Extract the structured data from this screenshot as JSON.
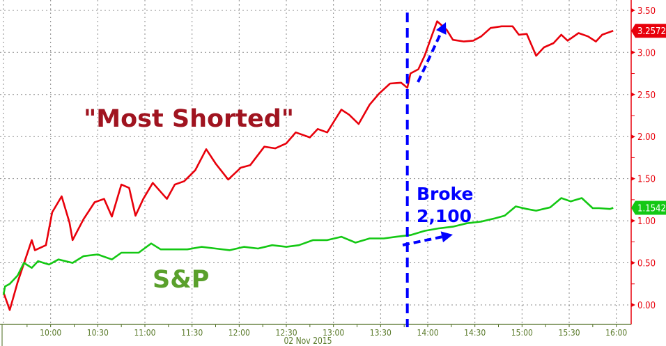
{
  "chart_data": {
    "type": "line",
    "xlabel": "02 Nov 2015",
    "x_ticks": [
      "10:00",
      "10:30",
      "11:00",
      "11:30",
      "12:00",
      "12:30",
      "13:00",
      "13:30",
      "14:00",
      "14:30",
      "15:00",
      "15:30",
      "16:00"
    ],
    "x_range": [
      "09:30",
      "16:00"
    ],
    "y_ticks": [
      "0.00",
      "0.50",
      "1.00",
      "1.50",
      "2.00",
      "2.50",
      "3.00",
      "3.50"
    ],
    "ylim": [
      -0.2,
      3.62
    ],
    "grid": true,
    "y_axis_side": "right",
    "series": [
      {
        "name": "\"Most Shorted\"",
        "color": "#e8000b",
        "last_value": "3.2572",
        "points": [
          [
            "09:30",
            0.15
          ],
          [
            "09:34",
            -0.06
          ],
          [
            "09:39",
            0.27
          ],
          [
            "09:48",
            0.77
          ],
          [
            "09:50",
            0.65
          ],
          [
            "09:57",
            0.71
          ],
          [
            "10:01",
            1.1
          ],
          [
            "10:07",
            1.29
          ],
          [
            "10:12",
            0.98
          ],
          [
            "10:14",
            0.77
          ],
          [
            "10:21",
            1.02
          ],
          [
            "10:28",
            1.22
          ],
          [
            "10:34",
            1.26
          ],
          [
            "10:39",
            1.05
          ],
          [
            "10:45",
            1.43
          ],
          [
            "10:50",
            1.39
          ],
          [
            "10:54",
            1.06
          ],
          [
            "10:59",
            1.26
          ],
          [
            "11:05",
            1.45
          ],
          [
            "11:14",
            1.26
          ],
          [
            "11:19",
            1.43
          ],
          [
            "11:25",
            1.47
          ],
          [
            "11:32",
            1.6
          ],
          [
            "11:39",
            1.85
          ],
          [
            "11:45",
            1.68
          ],
          [
            "11:53",
            1.49
          ],
          [
            "12:01",
            1.63
          ],
          [
            "12:07",
            1.66
          ],
          [
            "12:16",
            1.88
          ],
          [
            "12:23",
            1.86
          ],
          [
            "12:30",
            1.92
          ],
          [
            "12:36",
            2.05
          ],
          [
            "12:45",
            1.99
          ],
          [
            "12:50",
            2.09
          ],
          [
            "12:56",
            2.05
          ],
          [
            "13:01",
            2.2
          ],
          [
            "13:05",
            2.32
          ],
          [
            "13:10",
            2.26
          ],
          [
            "13:16",
            2.15
          ],
          [
            "13:23",
            2.38
          ],
          [
            "13:29",
            2.51
          ],
          [
            "13:36",
            2.63
          ],
          [
            "13:43",
            2.64
          ],
          [
            "13:47",
            2.58
          ],
          [
            "13:49",
            2.75
          ],
          [
            "13:54",
            2.8
          ],
          [
            "13:58",
            2.96
          ],
          [
            "14:03",
            3.22
          ],
          [
            "14:06",
            3.37
          ],
          [
            "14:12",
            3.27
          ],
          [
            "14:16",
            3.15
          ],
          [
            "14:23",
            3.13
          ],
          [
            "14:29",
            3.14
          ],
          [
            "14:34",
            3.19
          ],
          [
            "14:40",
            3.29
          ],
          [
            "14:47",
            3.31
          ],
          [
            "14:54",
            3.31
          ],
          [
            "14:58",
            3.21
          ],
          [
            "15:03",
            3.22
          ],
          [
            "15:09",
            2.96
          ],
          [
            "15:14",
            3.06
          ],
          [
            "15:20",
            3.11
          ],
          [
            "15:25",
            3.21
          ],
          [
            "15:29",
            3.14
          ],
          [
            "15:36",
            3.23
          ],
          [
            "15:42",
            3.19
          ],
          [
            "15:47",
            3.13
          ],
          [
            "15:51",
            3.21
          ],
          [
            "15:58",
            3.2572
          ]
        ]
      },
      {
        "name": "S&P",
        "color": "#14c814",
        "last_value": "1.1542",
        "points": [
          [
            "09:30",
            0.12
          ],
          [
            "09:31",
            0.22
          ],
          [
            "09:34",
            0.25
          ],
          [
            "09:39",
            0.35
          ],
          [
            "09:43",
            0.5
          ],
          [
            "09:48",
            0.44
          ],
          [
            "09:52",
            0.52
          ],
          [
            "09:59",
            0.48
          ],
          [
            "10:05",
            0.54
          ],
          [
            "10:14",
            0.5
          ],
          [
            "10:21",
            0.58
          ],
          [
            "10:30",
            0.6
          ],
          [
            "10:39",
            0.54
          ],
          [
            "10:45",
            0.62
          ],
          [
            "10:56",
            0.62
          ],
          [
            "11:04",
            0.73
          ],
          [
            "11:10",
            0.66
          ],
          [
            "11:19",
            0.66
          ],
          [
            "11:27",
            0.66
          ],
          [
            "11:36",
            0.69
          ],
          [
            "11:45",
            0.67
          ],
          [
            "11:54",
            0.65
          ],
          [
            "12:03",
            0.69
          ],
          [
            "12:12",
            0.67
          ],
          [
            "12:21",
            0.71
          ],
          [
            "12:30",
            0.69
          ],
          [
            "12:38",
            0.71
          ],
          [
            "12:47",
            0.77
          ],
          [
            "12:56",
            0.77
          ],
          [
            "13:05",
            0.81
          ],
          [
            "13:14",
            0.74
          ],
          [
            "13:23",
            0.79
          ],
          [
            "13:32",
            0.79
          ],
          [
            "13:40",
            0.81
          ],
          [
            "13:49",
            0.83
          ],
          [
            "13:58",
            0.88
          ],
          [
            "14:07",
            0.91
          ],
          [
            "14:16",
            0.93
          ],
          [
            "14:25",
            0.97
          ],
          [
            "14:34",
            0.99
          ],
          [
            "14:43",
            1.03
          ],
          [
            "14:49",
            1.06
          ],
          [
            "14:56",
            1.17
          ],
          [
            "15:03",
            1.14
          ],
          [
            "15:09",
            1.12
          ],
          [
            "15:18",
            1.16
          ],
          [
            "15:25",
            1.27
          ],
          [
            "15:31",
            1.23
          ],
          [
            "15:38",
            1.27
          ],
          [
            "15:45",
            1.15
          ],
          [
            "15:49",
            1.15
          ],
          [
            "15:56",
            1.14
          ],
          [
            "15:58",
            1.1542
          ]
        ]
      }
    ],
    "annotations": {
      "most_shorted_label": "\"Most Shorted\"",
      "sp_label": "S&P",
      "broke_line1": "Broke",
      "broke_line2": "2,100",
      "event_time": "13:47",
      "annotation_color": "#0000ff",
      "most_shorted_label_color": "#a01420",
      "sp_label_color": "#5aa02c"
    }
  }
}
